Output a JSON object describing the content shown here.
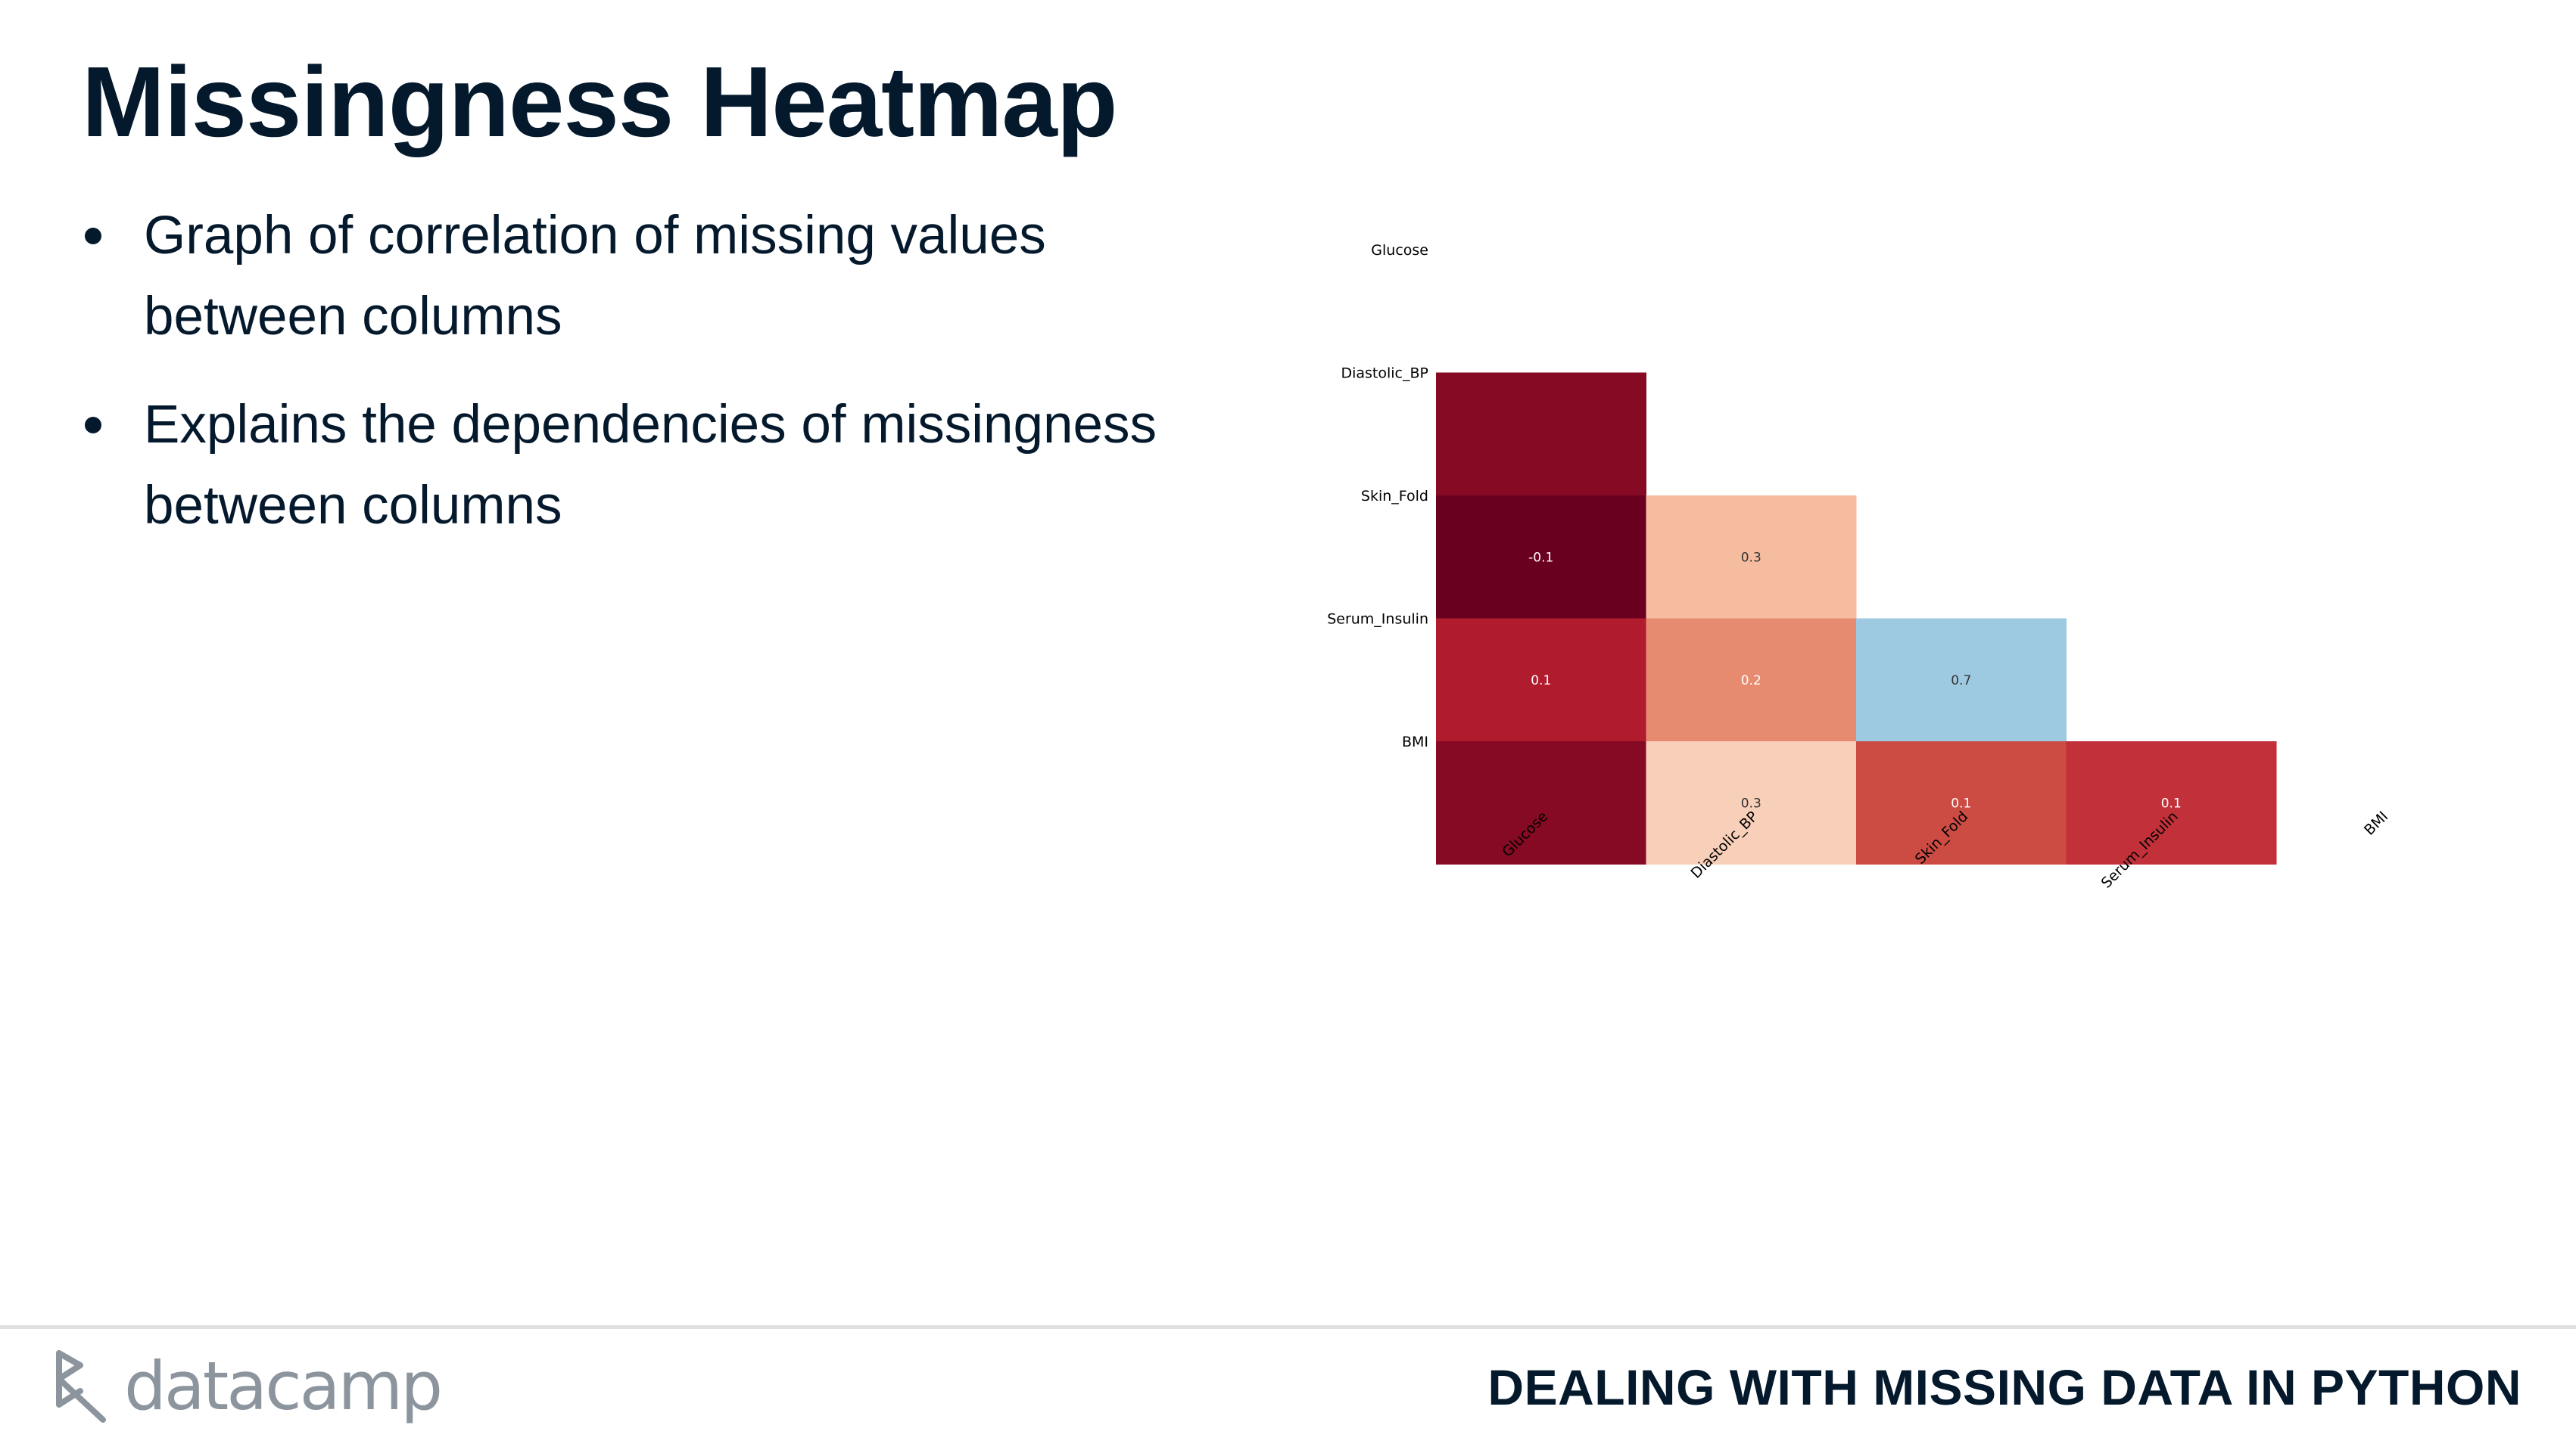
{
  "slide": {
    "title": "Missingness Heatmap",
    "bullets": [
      {
        "text": "Graph of correlation of missing values between columns"
      },
      {
        "text": "Explains the dependencies of missingness between columns"
      }
    ]
  },
  "footer": {
    "logo_text": "datacamp",
    "course_title": "DEALING WITH MISSING DATA IN PYTHON"
  },
  "colors": {
    "text": "#05192d",
    "footer_gray": "#8c959e"
  },
  "chart_data": {
    "type": "heatmap",
    "title": "",
    "xlabel": "",
    "ylabel": "",
    "columns": [
      "Glucose",
      "Diastolic_BP",
      "Skin_Fold",
      "Serum_Insulin",
      "BMI"
    ],
    "rows": [
      "Glucose",
      "Diastolic_BP",
      "Skin_Fold",
      "Serum_Insulin",
      "BMI"
    ],
    "mask": "upper-triangle-and-diagonal",
    "cells": [
      {
        "row": "Diastolic_BP",
        "col": "Glucose",
        "value": -0.05,
        "label": "",
        "color": "#860a24"
      },
      {
        "row": "Skin_Fold",
        "col": "Glucose",
        "value": -0.1,
        "label": "-0.1",
        "color": "#6a0020"
      },
      {
        "row": "Skin_Fold",
        "col": "Diastolic_BP",
        "value": 0.3,
        "label": "0.3",
        "color": "#f6bca0"
      },
      {
        "row": "Serum_Insulin",
        "col": "Glucose",
        "value": 0.1,
        "label": "0.1",
        "color": "#b01b2e"
      },
      {
        "row": "Serum_Insulin",
        "col": "Diastolic_BP",
        "value": 0.2,
        "label": "0.2",
        "color": "#e78b70"
      },
      {
        "row": "Serum_Insulin",
        "col": "Skin_Fold",
        "value": 0.7,
        "label": "0.7",
        "color": "#9ecae1"
      },
      {
        "row": "BMI",
        "col": "Glucose",
        "value": -0.05,
        "label": "",
        "color": "#860a24"
      },
      {
        "row": "BMI",
        "col": "Diastolic_BP",
        "value": 0.3,
        "label": "0.3",
        "color": "#f8cfb8"
      },
      {
        "row": "BMI",
        "col": "Skin_Fold",
        "value": 0.1,
        "label": "0.1",
        "color": "#cc4c43"
      },
      {
        "row": "BMI",
        "col": "Serum_Insulin",
        "value": 0.1,
        "label": "0.1",
        "color": "#c2313a"
      }
    ]
  }
}
